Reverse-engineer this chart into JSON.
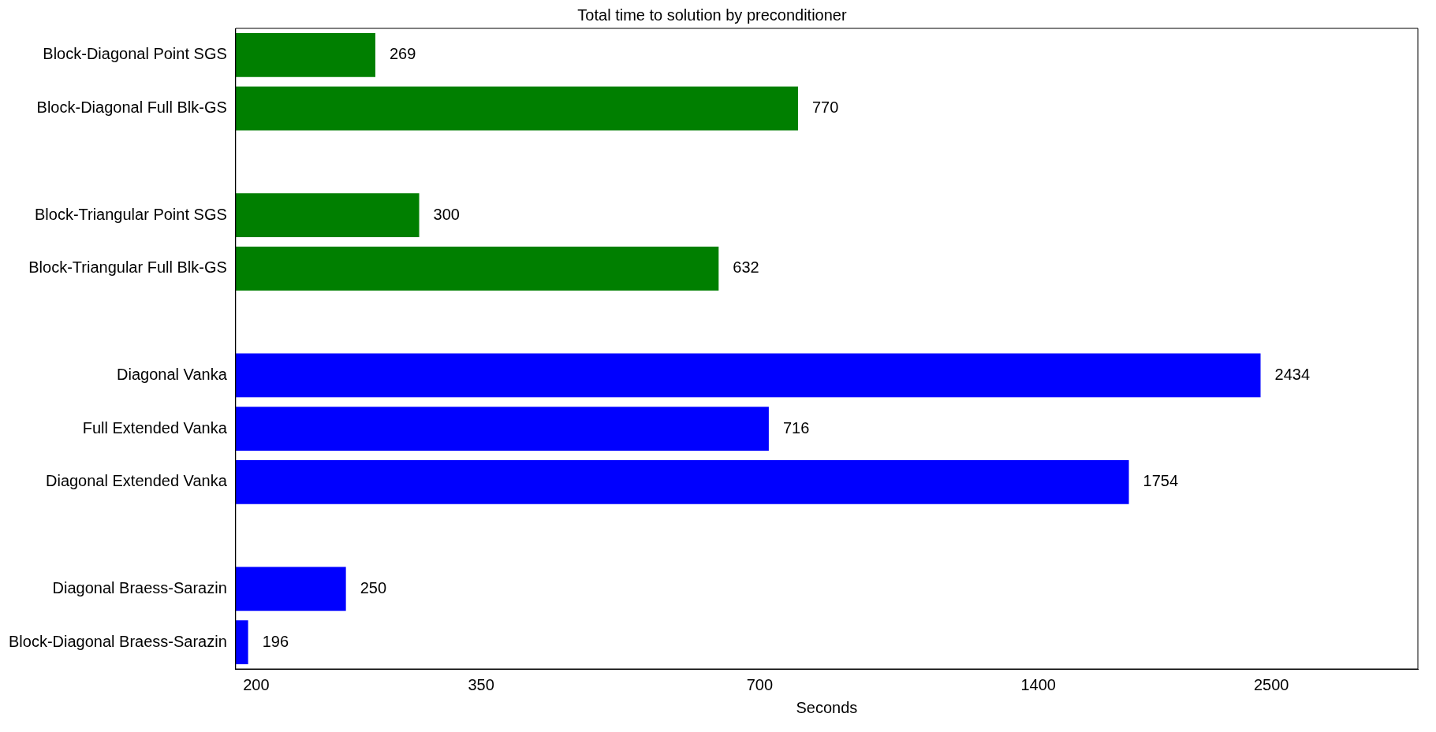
{
  "chart_data": {
    "type": "bar",
    "orientation": "horizontal",
    "title": "Total time to solution by preconditioner",
    "xlabel": "Seconds",
    "categories": [
      "Block-Diagonal Point SGS",
      "Block-Diagonal Full Blk-GS",
      null,
      "Block-Triangular Point SGS",
      "Block-Triangular Full Blk-GS",
      null,
      "Diagonal Vanka",
      "Full Extended Vanka",
      "Diagonal Extended Vanka",
      null,
      "Diagonal Braess-Sarazin",
      "Block-Diagonal Braess-Sarazin"
    ],
    "values": [
      269,
      770,
      null,
      300,
      632,
      null,
      2434,
      716,
      1754,
      null,
      250,
      196
    ],
    "colors": [
      "#007f00",
      "#007f00",
      "#007f00",
      "#007f00",
      "#007f00",
      "#0000ff",
      "#0000ff",
      "#0000ff",
      "#0000ff",
      "#0000ff",
      "#0000ff",
      "#0000ff"
    ],
    "log": "x",
    "xlim": [
      190,
      3600
    ],
    "xticks": [
      200,
      350,
      700,
      1400,
      2500
    ],
    "grid": false,
    "legend": false,
    "data_labels": true
  }
}
